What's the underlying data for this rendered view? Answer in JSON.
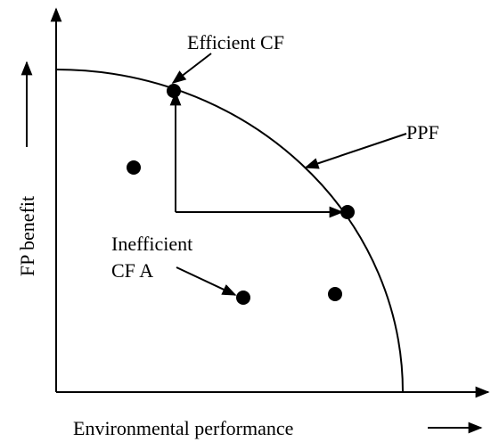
{
  "labels": {
    "efficient": "Efficient CF",
    "ppf": "PPF",
    "inefficient": [
      "Inefficient",
      "CF A"
    ]
  },
  "axes": {
    "y_label": "FP benefit",
    "x_label": "Environmental performance"
  }
}
